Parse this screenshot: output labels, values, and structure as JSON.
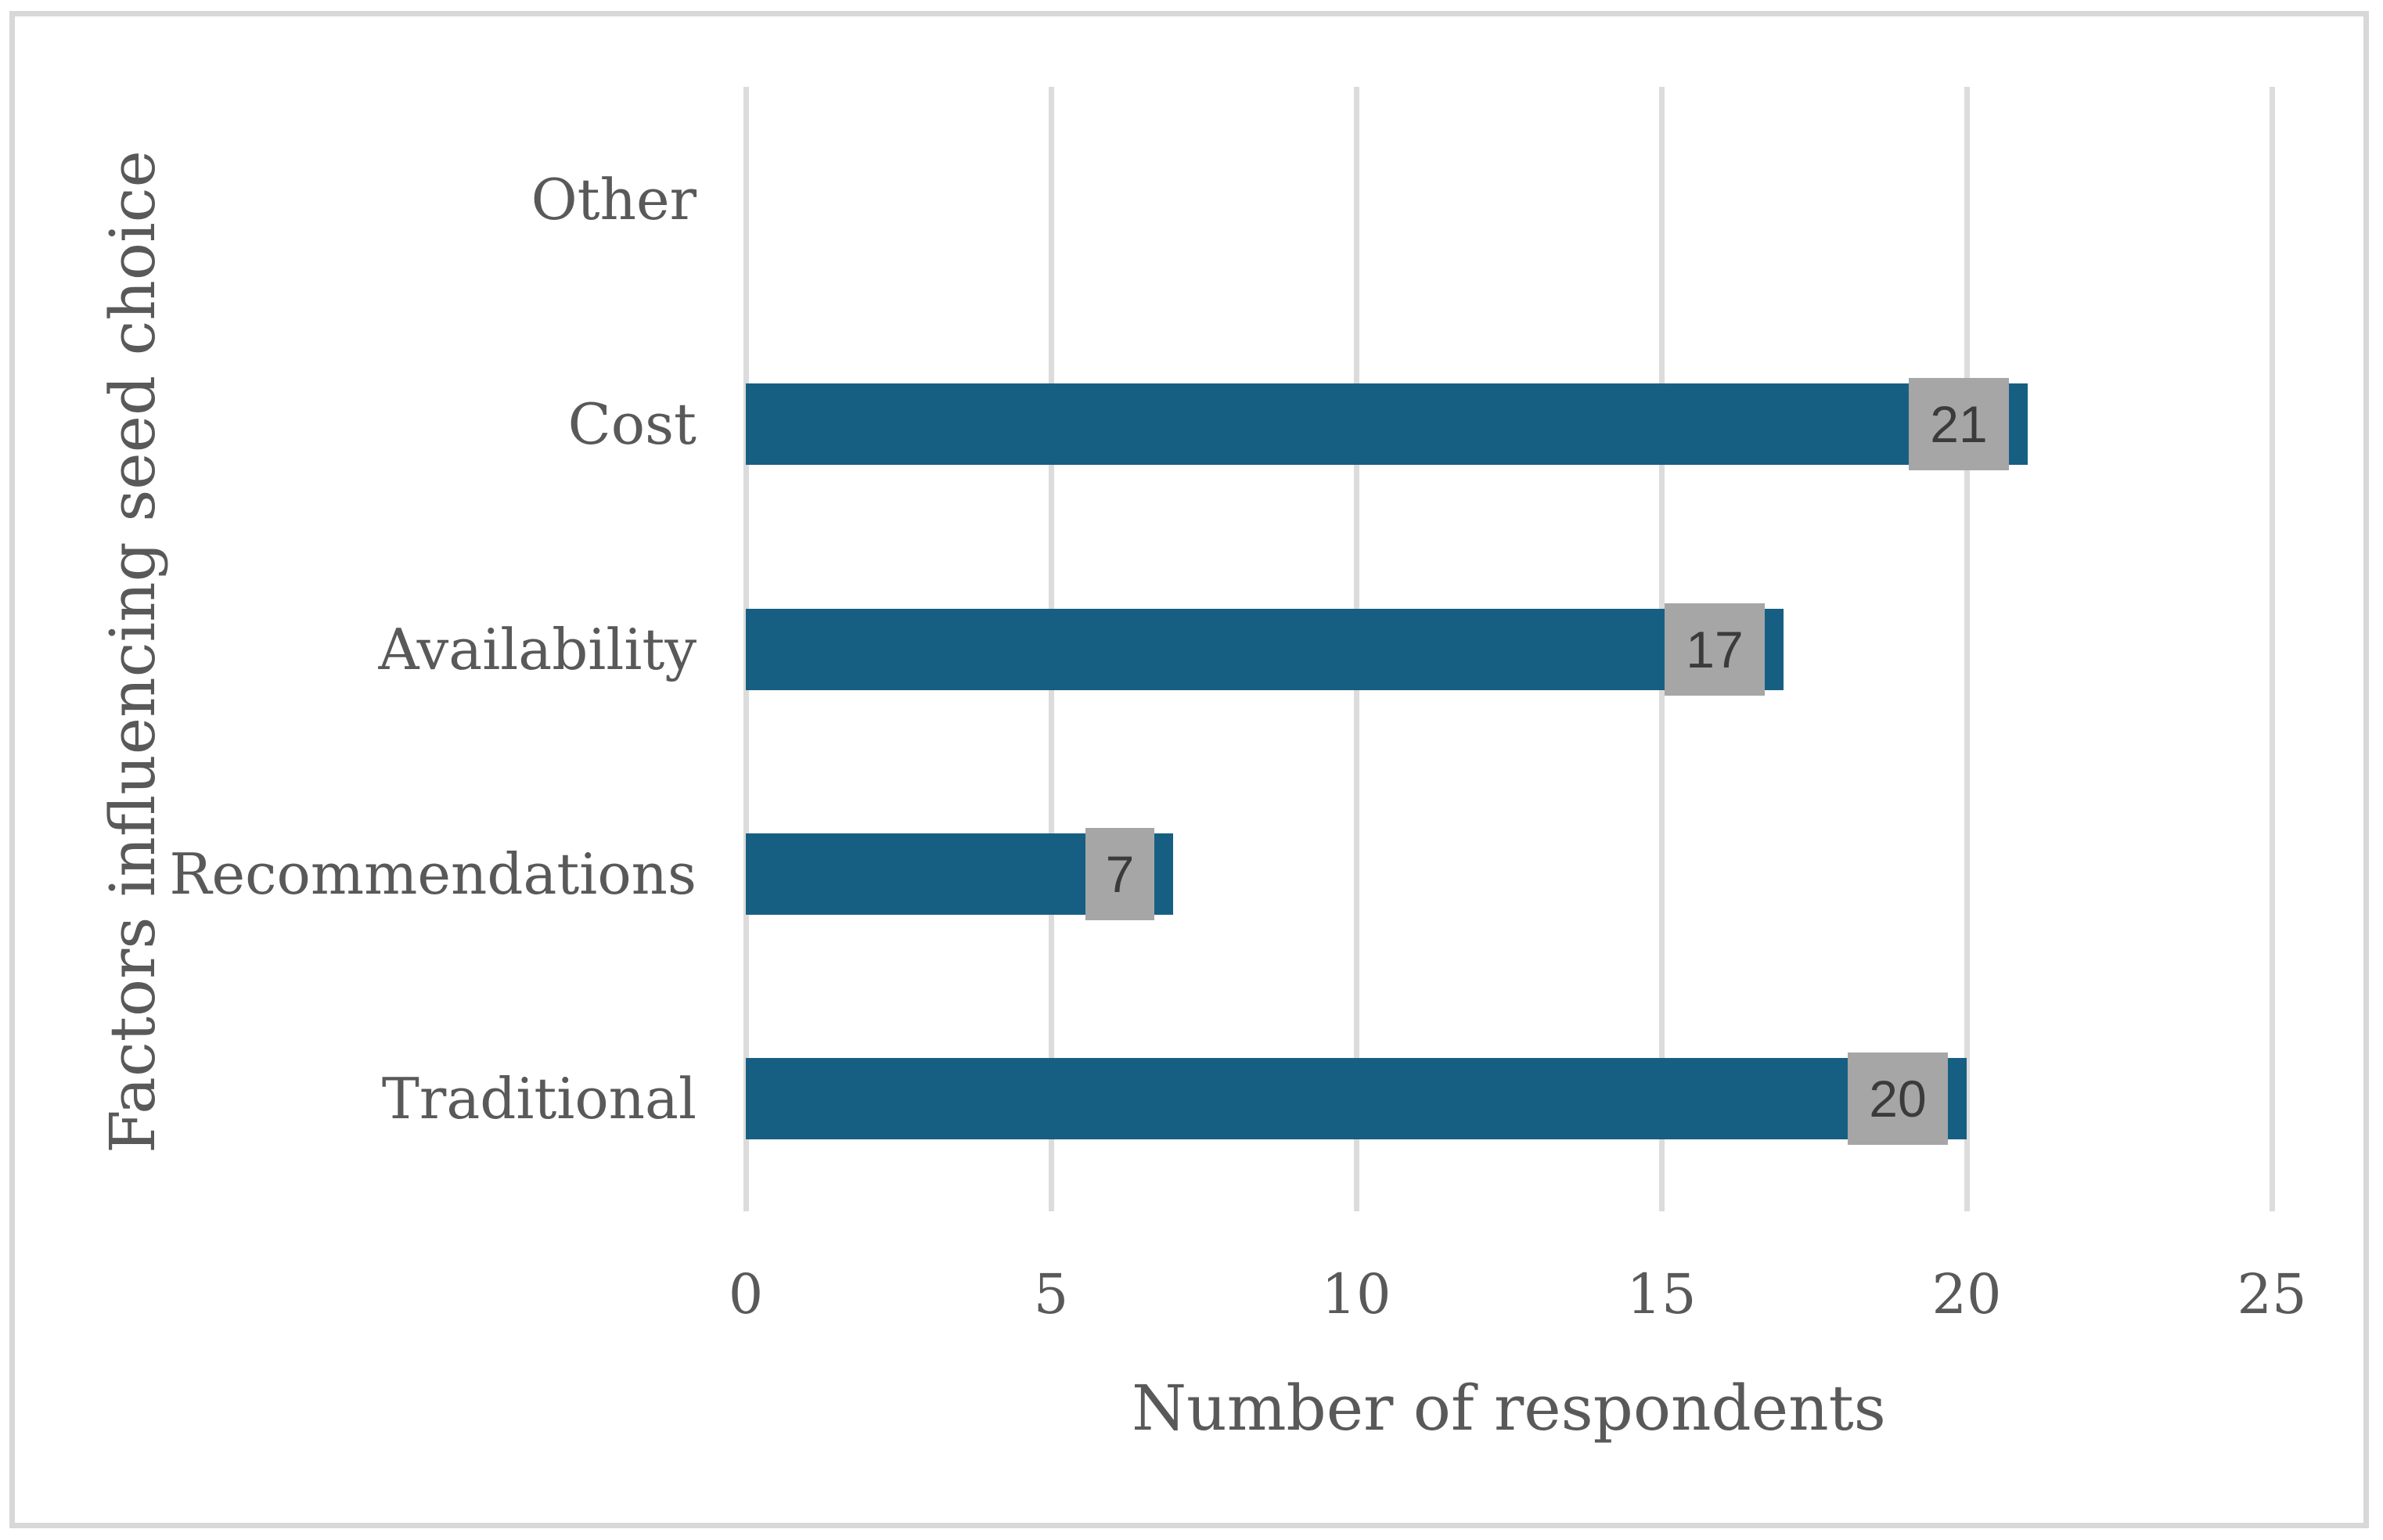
{
  "chart_data": {
    "type": "bar",
    "orientation": "horizontal",
    "title": "",
    "xlabel": "Number of respondents",
    "ylabel": "Factors influencing seed choice",
    "categories": [
      "Other",
      "Cost",
      "Availability",
      "Recommendations",
      "Traditional"
    ],
    "values": [
      0,
      21,
      17,
      7,
      20
    ],
    "data_labels": [
      "",
      "21",
      "17",
      "7",
      "20"
    ],
    "xticks": [
      "0",
      "5",
      "10",
      "15",
      "20",
      "25"
    ],
    "xlim": [
      0,
      25
    ],
    "grid": "vertical-gridlines-on",
    "legend": "none",
    "colors": {
      "bar": "#175f82",
      "data_label_box": "#a6a6a6",
      "data_label_text": "#3b3b3b",
      "axis_text": "#595959",
      "gridline": "#dcdcdc",
      "figure_border": "#d8d8d8",
      "background": "#ffffff"
    }
  }
}
